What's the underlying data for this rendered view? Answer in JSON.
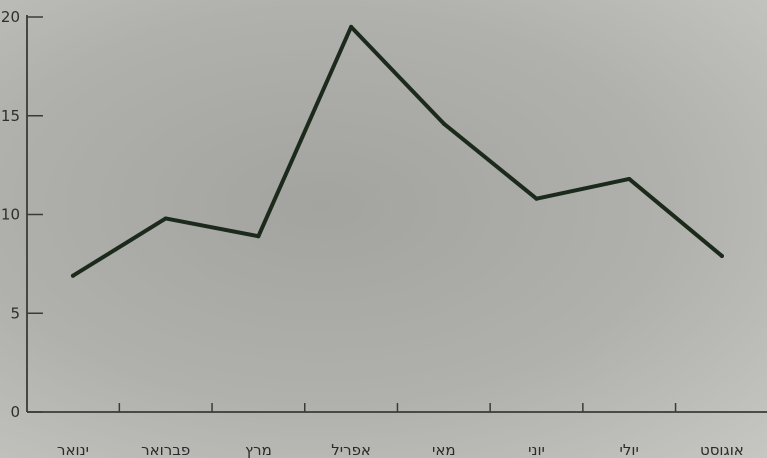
{
  "chart_data": {
    "type": "line",
    "title": "",
    "xlabel": "",
    "ylabel": "",
    "categories": [
      "ינואר",
      "פברואר",
      "מרץ",
      "אפריל",
      "מאי",
      "יוני",
      "יולי",
      "אוגוסט"
    ],
    "series": [
      {
        "values": [
          6.9,
          9.8,
          8.9,
          19.5,
          14.6,
          10.8,
          11.8,
          7.9
        ]
      }
    ],
    "ylim": [
      0,
      20
    ],
    "yticks": [
      0,
      5,
      10,
      15,
      20
    ],
    "grid": false,
    "line_color": "#1c2a1c",
    "axis_color": "#3a3a3a"
  }
}
